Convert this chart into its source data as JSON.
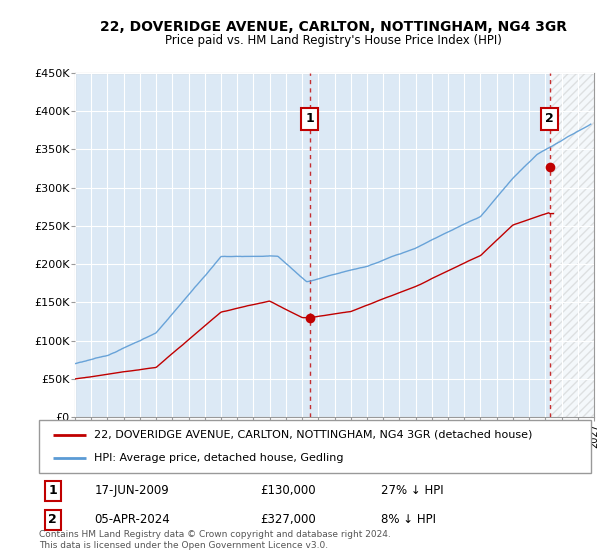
{
  "title": "22, DOVERIDGE AVENUE, CARLTON, NOTTINGHAM, NG4 3GR",
  "subtitle": "Price paid vs. HM Land Registry's House Price Index (HPI)",
  "ylabel_ticks": [
    "£0",
    "£50K",
    "£100K",
    "£150K",
    "£200K",
    "£250K",
    "£300K",
    "£350K",
    "£400K",
    "£450K"
  ],
  "ylim": [
    0,
    450000
  ],
  "xlim_start": 1995.0,
  "xlim_end": 2027.0,
  "hpi_color": "#5b9bd5",
  "price_color": "#c00000",
  "plot_bg_color": "#dce9f5",
  "marker1_date": 2009.46,
  "marker1_price": 130000,
  "marker1_label": "1",
  "marker2_date": 2024.26,
  "marker2_price": 327000,
  "marker2_label": "2",
  "legend_entry1": "22, DOVERIDGE AVENUE, CARLTON, NOTTINGHAM, NG4 3GR (detached house)",
  "legend_entry2": "HPI: Average price, detached house, Gedling",
  "note1_label": "1",
  "note1_date": "17-JUN-2009",
  "note1_price": "£130,000",
  "note1_hpi": "27% ↓ HPI",
  "note2_label": "2",
  "note2_date": "05-APR-2024",
  "note2_price": "£327,000",
  "note2_hpi": "8% ↓ HPI",
  "copyright": "Contains HM Land Registry data © Crown copyright and database right 2024.\nThis data is licensed under the Open Government Licence v3.0.",
  "background_color": "#ffffff",
  "grid_color": "#ffffff"
}
